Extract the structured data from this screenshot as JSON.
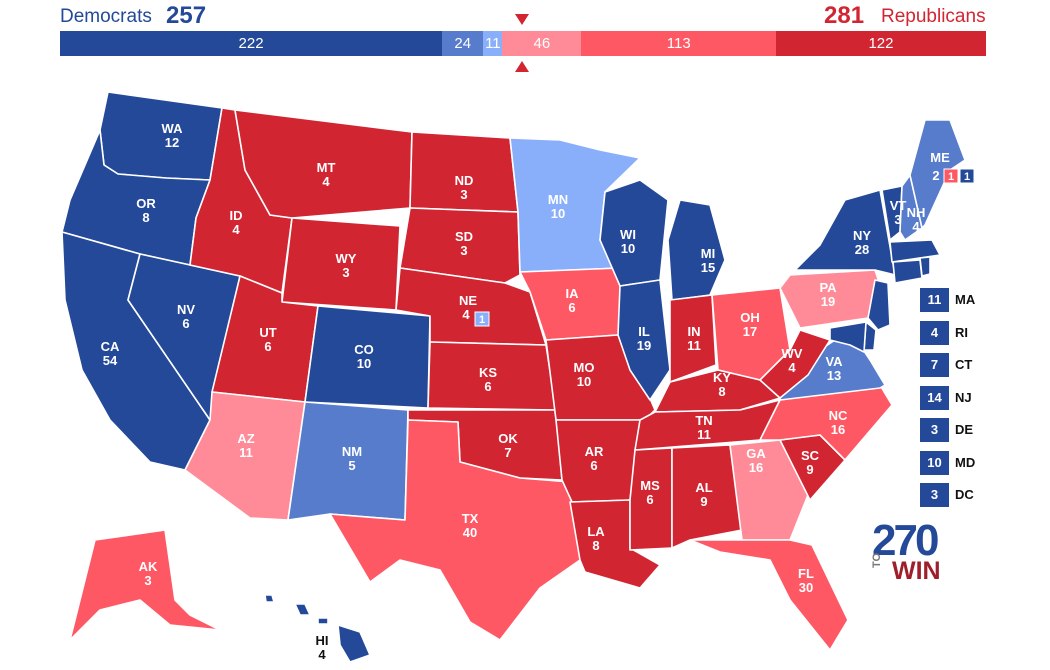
{
  "header": {
    "dem_label": "Democrats",
    "dem_total": "257",
    "rep_label": "Republicans",
    "rep_total": "281"
  },
  "colors": {
    "safe_dem": "#244999",
    "likely_dem": "#577ccc",
    "lean_dem": "#8aaffa",
    "tilt_rep": "#ff8b98",
    "likely_rep": "#ff5865",
    "safe_rep": "#d22532"
  },
  "bar": {
    "segments": [
      {
        "label": "222",
        "value": 222,
        "color": "#244999"
      },
      {
        "label": "24",
        "value": 24,
        "color": "#577ccc"
      },
      {
        "label": "11",
        "value": 11,
        "color": "#8aaffa"
      },
      {
        "label": "46",
        "value": 46,
        "color": "#ff8b98"
      },
      {
        "label": "113",
        "value": 113,
        "color": "#ff5865"
      },
      {
        "label": "122",
        "value": 122,
        "color": "#d22532"
      }
    ]
  },
  "states": [
    {
      "abbr": "WA",
      "votes": "12",
      "rating": "safe_dem"
    },
    {
      "abbr": "OR",
      "votes": "8",
      "rating": "safe_dem"
    },
    {
      "abbr": "CA",
      "votes": "54",
      "rating": "safe_dem"
    },
    {
      "abbr": "NV",
      "votes": "6",
      "rating": "safe_dem"
    },
    {
      "abbr": "ID",
      "votes": "4",
      "rating": "safe_rep"
    },
    {
      "abbr": "MT",
      "votes": "4",
      "rating": "safe_rep"
    },
    {
      "abbr": "WY",
      "votes": "3",
      "rating": "safe_rep"
    },
    {
      "abbr": "UT",
      "votes": "6",
      "rating": "safe_rep"
    },
    {
      "abbr": "AZ",
      "votes": "11",
      "rating": "tilt_rep"
    },
    {
      "abbr": "CO",
      "votes": "10",
      "rating": "safe_dem"
    },
    {
      "abbr": "NM",
      "votes": "5",
      "rating": "likely_dem"
    },
    {
      "abbr": "ND",
      "votes": "3",
      "rating": "safe_rep"
    },
    {
      "abbr": "SD",
      "votes": "3",
      "rating": "safe_rep"
    },
    {
      "abbr": "NE",
      "votes": "4",
      "rating": "safe_rep"
    },
    {
      "abbr": "KS",
      "votes": "6",
      "rating": "safe_rep"
    },
    {
      "abbr": "OK",
      "votes": "7",
      "rating": "safe_rep"
    },
    {
      "abbr": "TX",
      "votes": "40",
      "rating": "likely_rep"
    },
    {
      "abbr": "MN",
      "votes": "10",
      "rating": "lean_dem"
    },
    {
      "abbr": "IA",
      "votes": "6",
      "rating": "likely_rep"
    },
    {
      "abbr": "MO",
      "votes": "10",
      "rating": "safe_rep"
    },
    {
      "abbr": "AR",
      "votes": "6",
      "rating": "safe_rep"
    },
    {
      "abbr": "LA",
      "votes": "8",
      "rating": "safe_rep"
    },
    {
      "abbr": "WI",
      "votes": "10",
      "rating": "safe_dem"
    },
    {
      "abbr": "IL",
      "votes": "19",
      "rating": "safe_dem"
    },
    {
      "abbr": "MI",
      "votes": "15",
      "rating": "safe_dem"
    },
    {
      "abbr": "IN",
      "votes": "11",
      "rating": "safe_rep"
    },
    {
      "abbr": "OH",
      "votes": "17",
      "rating": "likely_rep"
    },
    {
      "abbr": "KY",
      "votes": "8",
      "rating": "safe_rep"
    },
    {
      "abbr": "TN",
      "votes": "11",
      "rating": "safe_rep"
    },
    {
      "abbr": "MS",
      "votes": "6",
      "rating": "safe_rep"
    },
    {
      "abbr": "AL",
      "votes": "9",
      "rating": "safe_rep"
    },
    {
      "abbr": "GA",
      "votes": "16",
      "rating": "tilt_rep"
    },
    {
      "abbr": "FL",
      "votes": "30",
      "rating": "likely_rep"
    },
    {
      "abbr": "SC",
      "votes": "9",
      "rating": "safe_rep"
    },
    {
      "abbr": "NC",
      "votes": "16",
      "rating": "likely_rep"
    },
    {
      "abbr": "VA",
      "votes": "13",
      "rating": "likely_dem"
    },
    {
      "abbr": "WV",
      "votes": "4",
      "rating": "safe_rep"
    },
    {
      "abbr": "PA",
      "votes": "19",
      "rating": "tilt_rep"
    },
    {
      "abbr": "NY",
      "votes": "28",
      "rating": "safe_dem"
    },
    {
      "abbr": "VT",
      "votes": "3",
      "rating": "safe_dem"
    },
    {
      "abbr": "NH",
      "votes": "4",
      "rating": "likely_dem"
    },
    {
      "abbr": "ME",
      "votes": "2",
      "rating": "likely_dem"
    },
    {
      "abbr": "AK",
      "votes": "3",
      "rating": "likely_rep"
    },
    {
      "abbr": "HI",
      "votes": "4",
      "rating": "safe_dem"
    }
  ],
  "districts": {
    "ne_cd": "1",
    "me_cd1": "1",
    "me_cd2": "1"
  },
  "small_states": [
    {
      "abbr": "MA",
      "votes": "11"
    },
    {
      "abbr": "RI",
      "votes": "4"
    },
    {
      "abbr": "CT",
      "votes": "7"
    },
    {
      "abbr": "NJ",
      "votes": "14"
    },
    {
      "abbr": "DE",
      "votes": "3"
    },
    {
      "abbr": "MD",
      "votes": "10"
    },
    {
      "abbr": "DC",
      "votes": "3"
    }
  ],
  "logo": {
    "number": "270",
    "to": "TO",
    "win": "WIN"
  }
}
